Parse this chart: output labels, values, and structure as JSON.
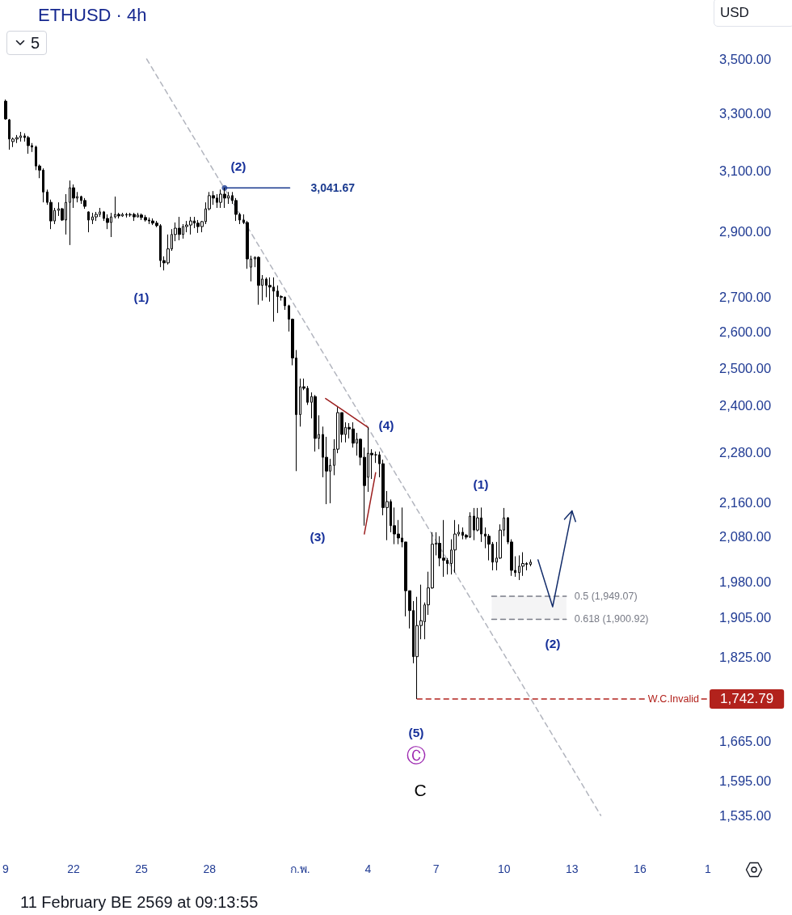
{
  "chart_data": {
    "type": "candlestick",
    "title": "ETHUSD · 4h",
    "ylabel": "USD",
    "color": "#000000",
    "x": [
      "--01-19T00:00",
      "--01-19T04:00",
      "--01-19T08:00",
      "--01-19T12:00",
      "--01-19T16:00",
      "--01-19T20:00",
      "--01-20T00:00",
      "--01-20T04:00",
      "--01-20T08:00",
      "--01-20T12:00",
      "--01-20T16:00",
      "--01-20T20:00",
      "--01-21T00:00",
      "--01-21T04:00",
      "--01-21T08:00",
      "--01-21T12:00",
      "--01-21T16:00",
      "--01-21T20:00",
      "--01-22T00:00",
      "--01-22T04:00",
      "--01-22T08:00",
      "--01-22T12:00",
      "--01-22T16:00",
      "--01-22T20:00",
      "--01-23T00:00",
      "--01-23T04:00",
      "--01-23T08:00",
      "--01-23T12:00",
      "--01-23T16:00",
      "--01-23T20:00",
      "--01-24T00:00",
      "--01-24T04:00",
      "--01-24T08:00",
      "--01-24T12:00",
      "--01-24T16:00",
      "--01-24T20:00",
      "--01-25T00:00",
      "--01-25T04:00",
      "--01-25T08:00",
      "--01-25T12:00",
      "--01-25T16:00",
      "--01-25T20:00",
      "--01-26T00:00",
      "--01-26T04:00",
      "--01-26T08:00",
      "--01-26T12:00",
      "--01-26T16:00",
      "--01-26T20:00",
      "--01-27T00:00",
      "--01-27T04:00",
      "--01-27T08:00",
      "--01-27T12:00",
      "--01-27T16:00",
      "--01-27T20:00",
      "--01-28T00:00",
      "--01-28T04:00",
      "--01-28T08:00",
      "--01-28T12:00",
      "--01-28T16:00",
      "--01-28T20:00",
      "--01-29T00:00",
      "--01-29T04:00",
      "--01-29T08:00",
      "--01-29T12:00",
      "--01-29T16:00",
      "--01-29T20:00",
      "--01-30T00:00",
      "--01-30T04:00",
      "--01-30T08:00",
      "--01-30T12:00",
      "--01-30T16:00",
      "--01-30T20:00",
      "--01-31T00:00",
      "--01-31T04:00",
      "--01-31T08:00",
      "--01-31T12:00",
      "--01-31T16:00",
      "--01-31T20:00",
      "--02-01T00:00",
      "--02-01T04:00",
      "--02-01T08:00",
      "--02-01T12:00",
      "--02-01T16:00",
      "--02-01T20:00",
      "--02-02T00:00",
      "--02-02T04:00",
      "--02-02T08:00",
      "--02-02T12:00",
      "--02-02T16:00",
      "--02-02T20:00",
      "--02-03T00:00",
      "--02-03T04:00",
      "--02-03T08:00",
      "--02-03T12:00",
      "--02-03T16:00",
      "--02-03T20:00",
      "--02-04T00:00",
      "--02-04T04:00",
      "--02-04T08:00",
      "--02-04T12:00",
      "--02-04T16:00",
      "--02-04T20:00",
      "--02-05T00:00",
      "--02-05T04:00",
      "--02-05T08:00",
      "--02-05T12:00",
      "--02-05T16:00",
      "--02-05T20:00",
      "--02-06T00:00",
      "--02-06T04:00",
      "--02-06T08:00",
      "--02-06T12:00",
      "--02-06T16:00",
      "--02-06T20:00",
      "--02-07T00:00",
      "--02-07T04:00",
      "--02-07T08:00",
      "--02-07T12:00",
      "--02-07T16:00",
      "--02-07T20:00",
      "--02-08T00:00",
      "--02-08T04:00",
      "--02-08T08:00",
      "--02-08T12:00",
      "--02-08T16:00",
      "--02-08T20:00",
      "--02-09T00:00",
      "--02-09T04:00",
      "--02-09T08:00",
      "--02-09T12:00",
      "--02-09T16:00",
      "--02-09T20:00",
      "--02-10T00:00",
      "--02-10T04:00",
      "--02-10T08:00",
      "--02-10T12:00",
      "--02-10T16:00",
      "--02-10T20:00",
      "--02-11T00:00",
      "--02-11T04:00"
    ],
    "ohlc": [
      [
        3343,
        3349,
        3276,
        3279
      ],
      [
        3276,
        3279,
        3171,
        3208
      ],
      [
        3199,
        3213,
        3180,
        3208
      ],
      [
        3208,
        3222,
        3194,
        3213
      ],
      [
        3213,
        3233,
        3199,
        3219
      ],
      [
        3219,
        3228,
        3199,
        3213
      ],
      [
        3213,
        3219,
        3157,
        3185
      ],
      [
        3185,
        3194,
        3163,
        3180
      ],
      [
        3180,
        3185,
        3101,
        3115
      ],
      [
        3115,
        3120,
        3074,
        3101
      ],
      [
        3101,
        3107,
        2994,
        3028
      ],
      [
        3028,
        3036,
        2986,
        2994
      ],
      [
        2994,
        3003,
        2908,
        2934
      ],
      [
        2934,
        2976,
        2924,
        2968
      ],
      [
        2968,
        2994,
        2950,
        2973
      ],
      [
        2973,
        2976,
        2934,
        2937
      ],
      [
        2937,
        3021,
        2891,
        2994
      ],
      [
        2994,
        3066,
        2858,
        3042
      ],
      [
        3042,
        3053,
        2976,
        3008
      ],
      [
        3008,
        3028,
        2994,
        3013
      ],
      [
        3013,
        3016,
        2989,
        3000
      ],
      [
        3000,
        3008,
        2973,
        2981
      ],
      [
        2963,
        2965,
        2898,
        2937
      ],
      [
        2937,
        2960,
        2924,
        2947
      ],
      [
        2947,
        2963,
        2934,
        2955
      ],
      [
        2955,
        2976,
        2947,
        2963
      ],
      [
        2963,
        2966,
        2934,
        2942
      ],
      [
        2942,
        2955,
        2908,
        2929
      ],
      [
        2929,
        2960,
        2883,
        2947
      ],
      [
        2947,
        3013,
        2942,
        2955
      ],
      [
        2955,
        2960,
        2942,
        2950
      ],
      [
        2950,
        2960,
        2947,
        2955
      ],
      [
        2955,
        2960,
        2945,
        2953
      ],
      [
        2953,
        2960,
        2947,
        2955
      ],
      [
        2955,
        2960,
        2934,
        2947
      ],
      [
        2947,
        2960,
        2945,
        2953
      ],
      [
        2953,
        2958,
        2937,
        2945
      ],
      [
        2945,
        2953,
        2932,
        2937
      ],
      [
        2937,
        2945,
        2924,
        2934
      ],
      [
        2934,
        2942,
        2921,
        2927
      ],
      [
        2927,
        2934,
        2914,
        2919
      ],
      [
        2919,
        2924,
        2790,
        2810
      ],
      [
        2810,
        2823,
        2780,
        2803
      ],
      [
        2803,
        2891,
        2798,
        2846
      ],
      [
        2846,
        2908,
        2840,
        2891
      ],
      [
        2891,
        2929,
        2870,
        2911
      ],
      [
        2911,
        2947,
        2873,
        2891
      ],
      [
        2891,
        2924,
        2878,
        2916
      ],
      [
        2916,
        2934,
        2898,
        2921
      ],
      [
        2921,
        2947,
        2891,
        2934
      ],
      [
        2934,
        2947,
        2911,
        2927
      ],
      [
        2927,
        2937,
        2896,
        2916
      ],
      [
        2916,
        2934,
        2898,
        2932
      ],
      [
        2932,
        2994,
        2924,
        2973
      ],
      [
        2973,
        3028,
        2968,
        3016
      ],
      [
        3016,
        3031,
        2986,
        3008
      ],
      [
        3008,
        3021,
        2976,
        2994
      ],
      [
        2994,
        3036,
        2976,
        3021
      ],
      [
        3021,
        3041.67,
        2976,
        3008
      ],
      [
        3008,
        3028,
        2989,
        3016
      ],
      [
        3016,
        3028,
        2989,
        3000
      ],
      [
        3000,
        3008,
        2934,
        2955
      ],
      [
        2955,
        2960,
        2924,
        2937
      ],
      [
        2937,
        2955,
        2924,
        2929
      ],
      [
        2929,
        2934,
        2785,
        2815
      ],
      [
        2790,
        2825,
        2747,
        2815
      ],
      [
        2815,
        2823,
        2790,
        2820
      ],
      [
        2820,
        2823,
        2678,
        2735
      ],
      [
        2735,
        2766,
        2690,
        2754
      ],
      [
        2754,
        2759,
        2700,
        2735
      ],
      [
        2735,
        2759,
        2687,
        2730
      ],
      [
        2730,
        2759,
        2629,
        2718
      ],
      [
        2718,
        2735,
        2654,
        2702
      ],
      [
        2702,
        2706,
        2690,
        2700
      ],
      [
        2700,
        2702,
        2663,
        2675
      ],
      [
        2675,
        2678,
        2601,
        2636
      ],
      [
        2636,
        2638,
        2507,
        2527
      ],
      [
        2527,
        2549,
        2234,
        2376
      ],
      [
        2376,
        2471,
        2345,
        2449
      ],
      [
        2449,
        2471,
        2440,
        2445
      ],
      [
        2445,
        2451,
        2401,
        2408
      ],
      [
        2408,
        2434,
        2366,
        2423
      ],
      [
        2423,
        2427,
        2282,
        2315
      ],
      [
        2315,
        2374,
        2288,
        2325
      ],
      [
        2325,
        2345,
        2219,
        2268
      ],
      [
        2268,
        2319,
        2155,
        2234
      ],
      [
        2234,
        2264,
        2157,
        2248
      ],
      [
        2248,
        2313,
        2224,
        2288
      ],
      [
        2288,
        2395,
        2278,
        2381
      ],
      [
        2381,
        2381,
        2305,
        2325
      ],
      [
        2325,
        2356,
        2305,
        2343
      ],
      [
        2343,
        2354,
        2315,
        2339
      ],
      [
        2339,
        2356,
        2292,
        2303
      ],
      [
        2303,
        2329,
        2272,
        2313
      ],
      [
        2313,
        2315,
        2248,
        2268
      ],
      [
        2268,
        2292,
        2105,
        2199
      ],
      [
        2219,
        2343,
        2184,
        2278
      ],
      [
        2278,
        2288,
        2215,
        2274
      ],
      [
        2274,
        2282,
        2254,
        2274
      ],
      [
        2274,
        2282,
        2219,
        2252
      ],
      [
        2252,
        2262,
        2129,
        2147
      ],
      [
        2147,
        2186,
        2072,
        2161
      ],
      [
        2161,
        2166,
        2090,
        2105
      ],
      [
        2105,
        2147,
        2063,
        2086
      ],
      [
        2086,
        2118,
        2063,
        2077
      ],
      [
        2077,
        2147,
        2056,
        2068
      ],
      [
        2068,
        2068,
        1907,
        1961
      ],
      [
        1961,
        1961,
        1882,
        1919
      ],
      [
        1919,
        1939,
        1812,
        1825
      ],
      [
        1825,
        1948,
        1742.79,
        1888
      ],
      [
        1888,
        1974,
        1860,
        1898
      ],
      [
        1896,
        1936,
        1860,
        1931
      ],
      [
        1931,
        2002,
        1910,
        1967
      ],
      [
        1967,
        2090,
        1965,
        2063
      ],
      [
        2063,
        2090,
        2038,
        2065
      ],
      [
        2065,
        2081,
        2014,
        2032
      ],
      [
        2032,
        2118,
        1991,
        2027
      ],
      [
        2027,
        2032,
        1996,
        2020
      ],
      [
        2020,
        2074,
        1996,
        2050
      ],
      [
        2050,
        2118,
        2000,
        2086
      ],
      [
        2086,
        2108,
        2081,
        2090
      ],
      [
        2090,
        2101,
        2074,
        2083
      ],
      [
        2083,
        2086,
        2074,
        2079
      ],
      [
        2079,
        2136,
        2077,
        2127
      ],
      [
        2127,
        2146,
        2072,
        2095
      ],
      [
        2095,
        2146,
        2092,
        2123
      ],
      [
        2123,
        2147,
        2068,
        2086
      ],
      [
        2086,
        2101,
        2054,
        2081
      ],
      [
        2081,
        2086,
        2027,
        2063
      ],
      [
        2063,
        2068,
        2005,
        2023
      ],
      [
        2023,
        2068,
        2005,
        2032
      ],
      [
        2032,
        2108,
        2030,
        2095
      ],
      [
        2095,
        2146,
        2081,
        2123
      ],
      [
        2123,
        2125,
        2063,
        2068
      ],
      [
        2068,
        2074,
        1993,
        2005
      ],
      [
        2005,
        2036,
        1991,
        2000
      ],
      [
        2000,
        2038,
        1984,
        2014
      ],
      [
        2014,
        2045,
        1993,
        2020
      ],
      [
        2020,
        2023,
        2005,
        2018
      ],
      [
        2018,
        2029,
        2014,
        2023
      ]
    ],
    "series": [
      {
        "type": "line",
        "color": "#b2b5be",
        "line_style": "dashed",
        "x": [
          "--01-25T05:30",
          "--02-14T06:30"
        ],
        "values": [
          3500,
          1535
        ]
      },
      {
        "type": "line",
        "color": "#9c1f1f",
        "x": [
          "--02-02T03:00",
          "--02-04T00:00"
        ],
        "values": [
          2418,
          2343
        ]
      },
      {
        "type": "line",
        "color": "#9c1f1f",
        "x": [
          "--02-03T20:00",
          "--02-04T08:00"
        ],
        "values": [
          2086,
          2230
        ]
      },
      {
        "type": "line",
        "color": "#1a3a8f",
        "x": [
          "--01-28T16:00",
          "--01-31T13:00"
        ],
        "values": [
          3041.67,
          3041.67
        ],
        "value_labels": [
          null,
          "3,041.67"
        ]
      },
      {
        "type": "scatter",
        "color": "#1a3a8f",
        "marker": "circle",
        "x": [
          "--01-28T16:00"
        ],
        "values": [
          3041.67
        ]
      },
      {
        "type": "line",
        "name": "0.5 (1,949.07)",
        "color": "#787b86",
        "line_style": "dashed",
        "x": [
          "--02-09T11:00",
          "--02-12T18:00"
        ],
        "values": [
          1949.07,
          1949.07
        ]
      },
      {
        "type": "line",
        "name": "0.618 (1,900.92)",
        "color": "#787b86",
        "line_style": "dashed",
        "x": [
          "--02-09T11:00",
          "--02-12T18:00"
        ],
        "values": [
          1900.92,
          1900.92
        ],
        "lower": [
          1900.92,
          1900.92
        ],
        "upper": [
          1949.07,
          1949.07
        ]
      },
      {
        "type": "line",
        "name": "W.C.Invalid",
        "color": "#b2221c",
        "line_style": "dashed",
        "x": [
          "--02-06T04:00",
          "--02-19T00:00"
        ],
        "values": [
          1742.79,
          1742.79
        ],
        "value_labels": [
          null,
          "1,742.79"
        ]
      },
      {
        "type": "line",
        "color": "#132d6b",
        "x": [
          "--02-11T12:00",
          "--02-12T03:30",
          "--02-13T00:00"
        ],
        "values": [
          2028,
          1927,
          2139
        ]
      }
    ],
    "annotations": [
      "(2)",
      "(1)",
      "(3)",
      "(4)",
      "(5)",
      "(1)",
      "(2)",
      "Ⓒ",
      "C",
      "5",
      "11 February BE 2569 at 09:13:55"
    ],
    "xlim": [
      "--01-19",
      "--02-19"
    ],
    "xticks": [
      {
        "value": "--01-19",
        "label": "9"
      },
      {
        "value": "--01-22",
        "label": "22"
      },
      {
        "value": "--01-25",
        "label": "25"
      },
      {
        "value": "--01-28",
        "label": "28"
      },
      {
        "value": "--02-01",
        "label": "ก.พ."
      },
      {
        "value": "--02-04",
        "label": "4"
      },
      {
        "value": "--02-07",
        "label": "7"
      },
      {
        "value": "--02-10",
        "label": "10"
      },
      {
        "value": "--02-13",
        "label": "13"
      },
      {
        "value": "--02-16",
        "label": "16"
      },
      {
        "value": "--02-19",
        "label": "1"
      }
    ],
    "ylim": [
      1535,
      3500
    ],
    "yticks": [
      {
        "value": 1535,
        "label": "1,535.00"
      },
      {
        "value": 1595,
        "label": "1,595.00"
      },
      {
        "value": 1665,
        "label": "1,665.00"
      },
      {
        "value": 1825,
        "label": "1,825.00"
      },
      {
        "value": 1905,
        "label": "1,905.00"
      },
      {
        "value": 1980,
        "label": "1,980.00"
      },
      {
        "value": 2080,
        "label": "2,080.00"
      },
      {
        "value": 2160,
        "label": "2,160.00"
      },
      {
        "value": 2280,
        "label": "2,280.00"
      },
      {
        "value": 2400,
        "label": "2,400.00"
      },
      {
        "value": 2500,
        "label": "2,500.00"
      },
      {
        "value": 2600,
        "label": "2,600.00"
      },
      {
        "value": 2700,
        "label": "2,700.00"
      },
      {
        "value": 2900,
        "label": "2,900.00"
      },
      {
        "value": 3100,
        "label": "3,100.00"
      },
      {
        "value": 3300,
        "label": "3,300.00"
      },
      {
        "value": 3500,
        "label": "3,500.00"
      }
    ],
    "log": true
  }
}
